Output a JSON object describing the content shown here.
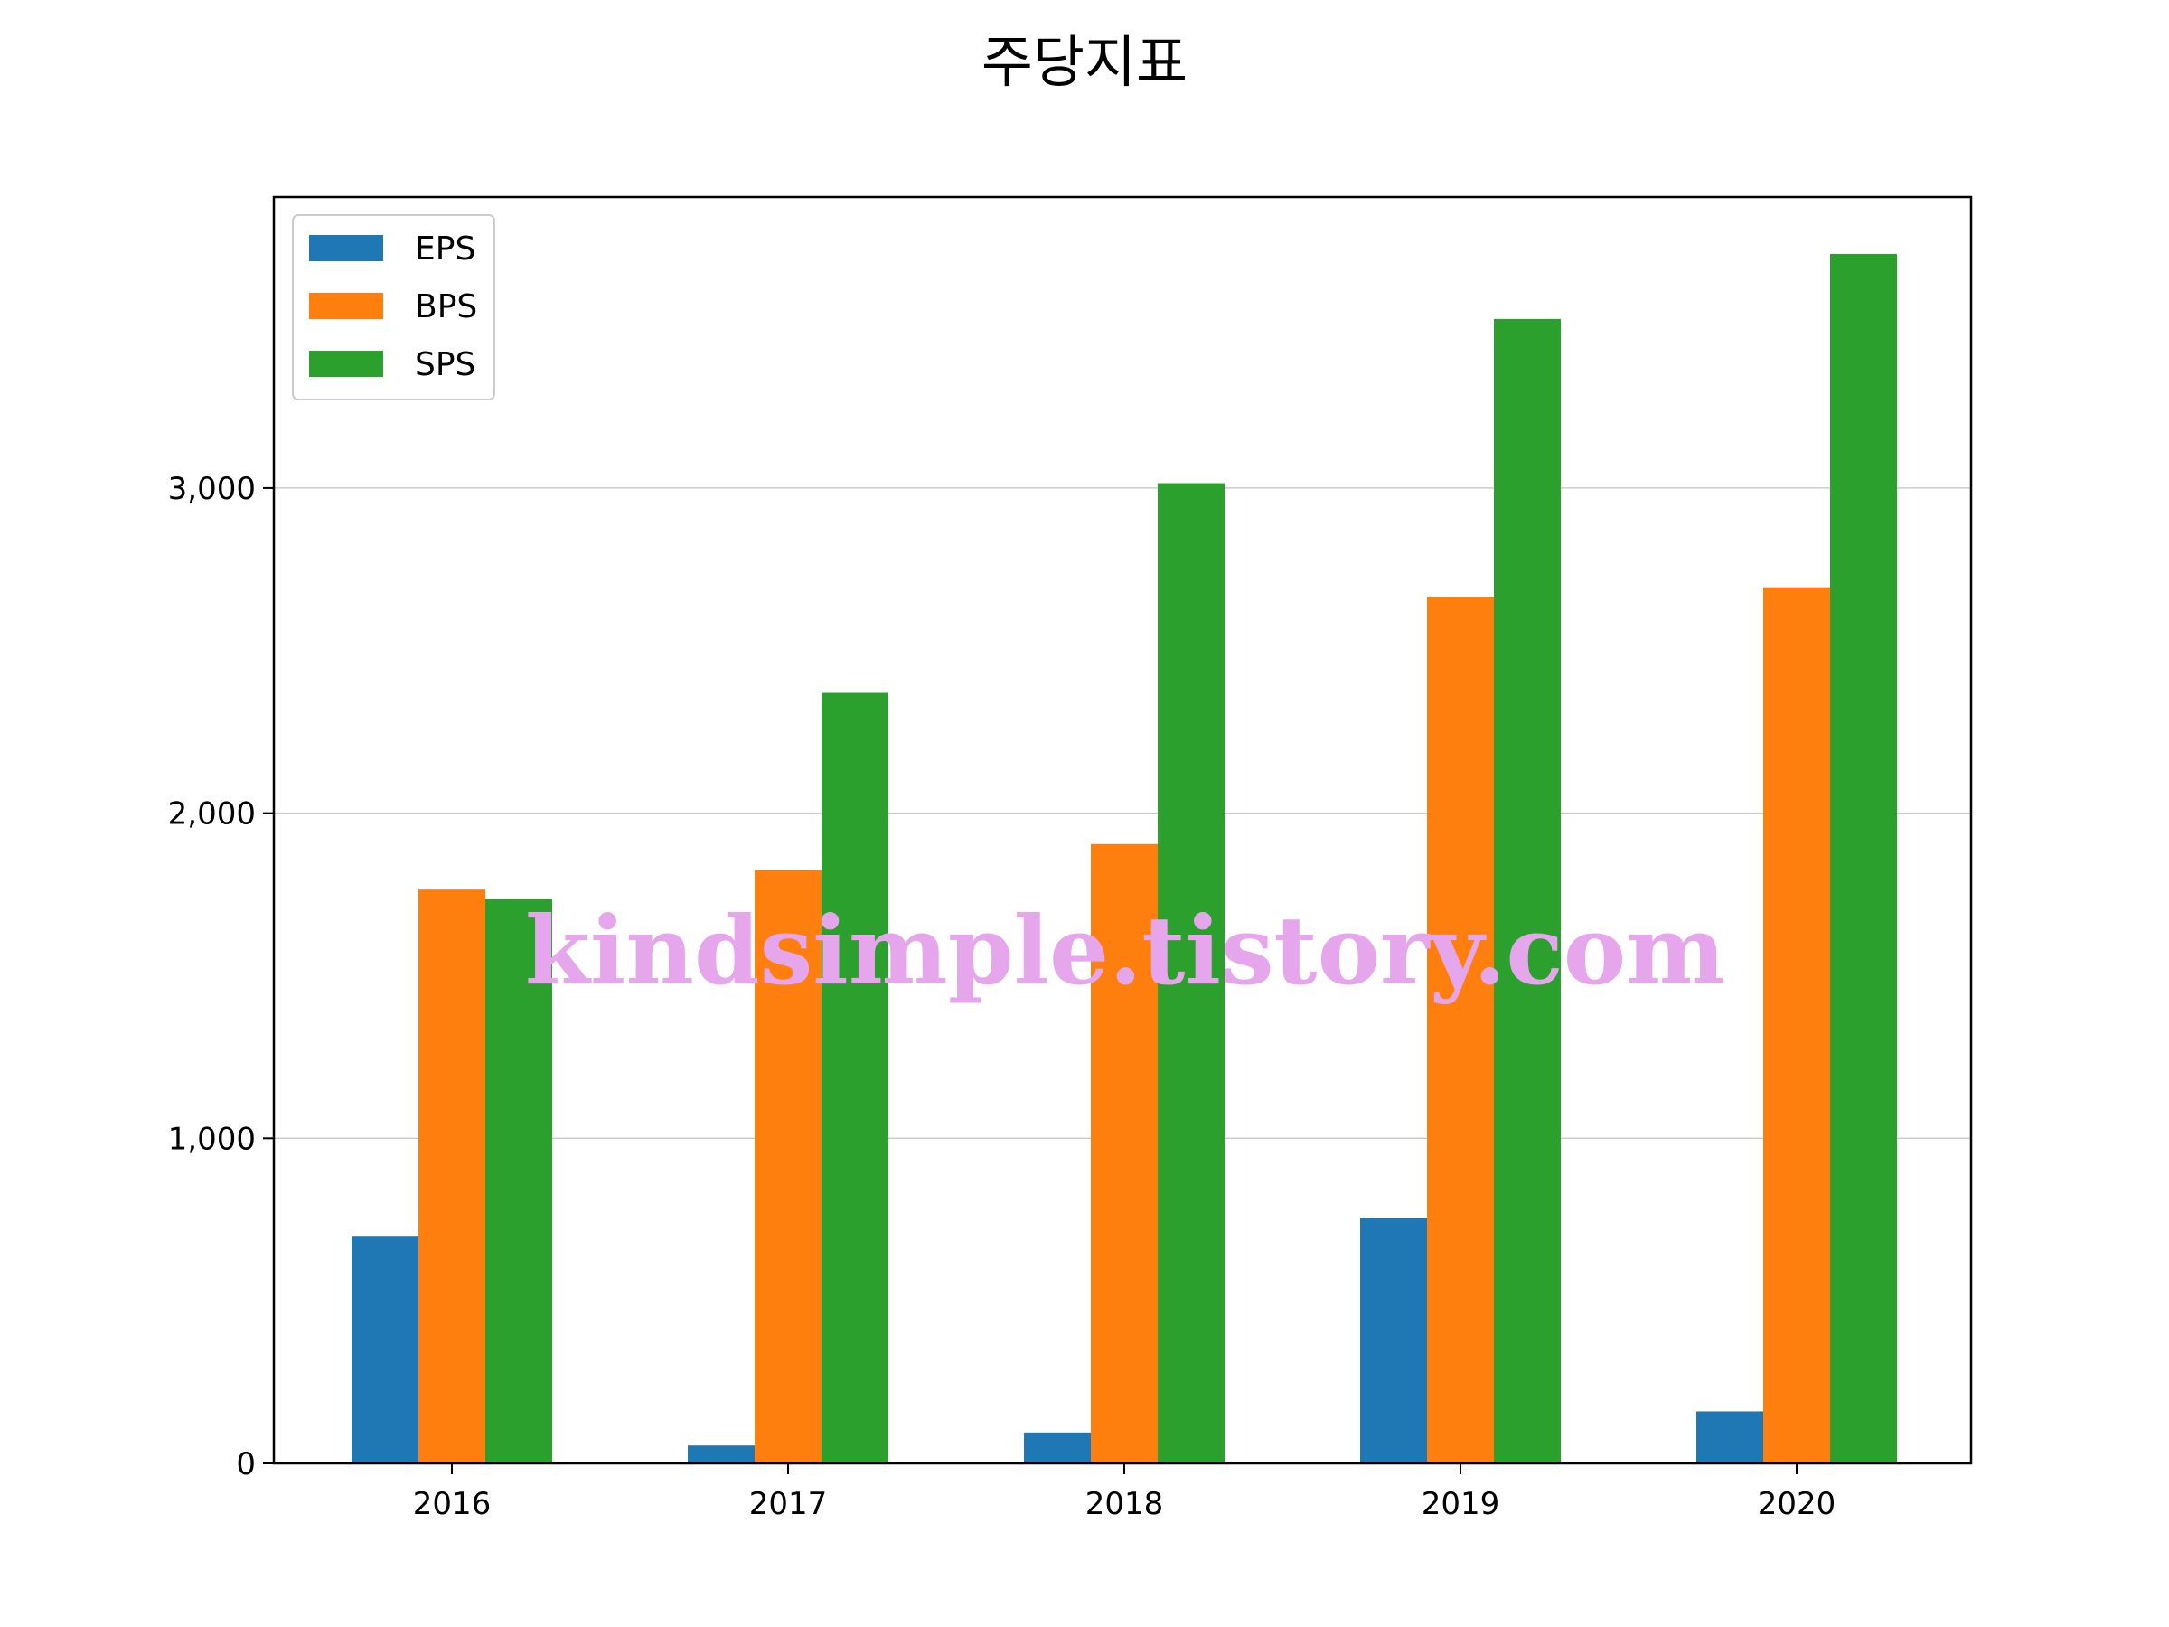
{
  "chart_data": {
    "type": "bar",
    "title": "주당지표",
    "categories": [
      "2016",
      "2017",
      "2018",
      "2019",
      "2020"
    ],
    "series": [
      {
        "name": "EPS",
        "color": "#1f77b4",
        "values": [
          700,
          55,
          95,
          755,
          160
        ]
      },
      {
        "name": "BPS",
        "color": "#ff7f0e",
        "values": [
          1765,
          1825,
          1905,
          2665,
          2695
        ]
      },
      {
        "name": "SPS",
        "color": "#2ca02c",
        "values": [
          1735,
          2370,
          3015,
          3520,
          3720
        ]
      }
    ],
    "yticks": [
      0,
      1000,
      2000,
      3000
    ],
    "ytick_labels": [
      "0",
      "1,000",
      "2,000",
      "3,000"
    ],
    "ylim": [
      0,
      3895
    ],
    "grid": "horizontal",
    "legend_position": "top-left",
    "watermark": "kindsimple.tistory.com"
  }
}
